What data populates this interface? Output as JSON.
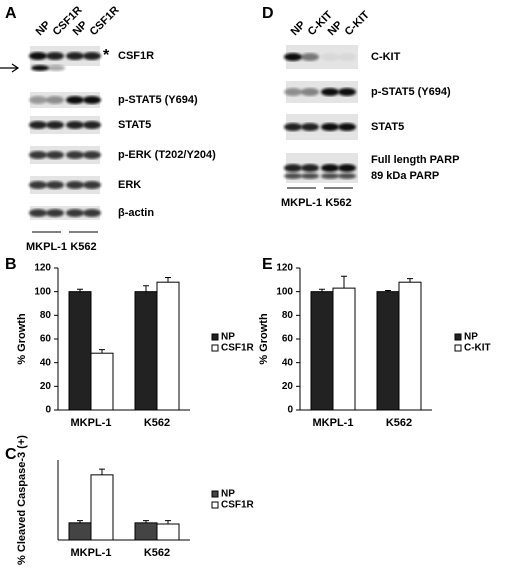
{
  "panels": {
    "A": {
      "letter": "A",
      "lanes": [
        "NP",
        "CSF1R",
        "NP",
        "CSF1R"
      ],
      "asterisk": "*",
      "rows": [
        "CSF1R",
        "p-STAT5 (Y694)",
        "STAT5",
        "p-ERK (T202/Y204)",
        "ERK",
        "β-actin"
      ],
      "groups": [
        "MKPL-1",
        "K562"
      ]
    },
    "D": {
      "letter": "D",
      "lanes": [
        "NP",
        "C-KIT",
        "NP",
        "C-KIT"
      ],
      "rows": [
        "C-KIT",
        "p-STAT5 (Y694)",
        "STAT5",
        "Full length PARP",
        "89 kDa PARP"
      ],
      "groups": [
        "MKPL-1",
        "K562"
      ]
    }
  },
  "chart_data": [
    {
      "type": "bar",
      "panel": "B",
      "y_label": "% Growth",
      "categories": [
        "MKPL-1",
        "K562"
      ],
      "series": [
        {
          "name": "NP",
          "color": "#222222",
          "values": [
            100,
            100
          ],
          "errors": [
            2,
            5
          ]
        },
        {
          "name": "CSF1R",
          "color": "#ffffff",
          "values": [
            48,
            108
          ],
          "errors": [
            3,
            4
          ]
        }
      ],
      "ylim": [
        0,
        120
      ],
      "yticks": [
        0,
        20,
        40,
        60,
        80,
        100,
        120
      ]
    },
    {
      "type": "bar",
      "panel": "E",
      "y_label": "% Growth",
      "categories": [
        "MKPL-1",
        "K562"
      ],
      "series": [
        {
          "name": "NP",
          "color": "#222222",
          "values": [
            100,
            100
          ],
          "errors": [
            2,
            1
          ]
        },
        {
          "name": "C-KIT",
          "color": "#ffffff",
          "values": [
            103,
            108
          ],
          "errors": [
            10,
            3
          ]
        }
      ],
      "ylim": [
        0,
        120
      ],
      "yticks": [
        0,
        20,
        40,
        60,
        80,
        100,
        120
      ]
    },
    {
      "type": "bar",
      "panel": "C",
      "y_label": "% Cleaved Caspase-3 (+)",
      "categories": [
        "MKPL-1",
        "K562"
      ],
      "series": [
        {
          "name": "NP",
          "color": "#444444",
          "values": [
            1.5,
            1.5
          ],
          "errors": [
            0.2,
            0.2
          ]
        },
        {
          "name": "CSF1R",
          "color": "#ffffff",
          "values": [
            5.7,
            1.4
          ],
          "errors": [
            0.5,
            0.3
          ]
        }
      ],
      "ylim": [
        0,
        7
      ]
    }
  ]
}
